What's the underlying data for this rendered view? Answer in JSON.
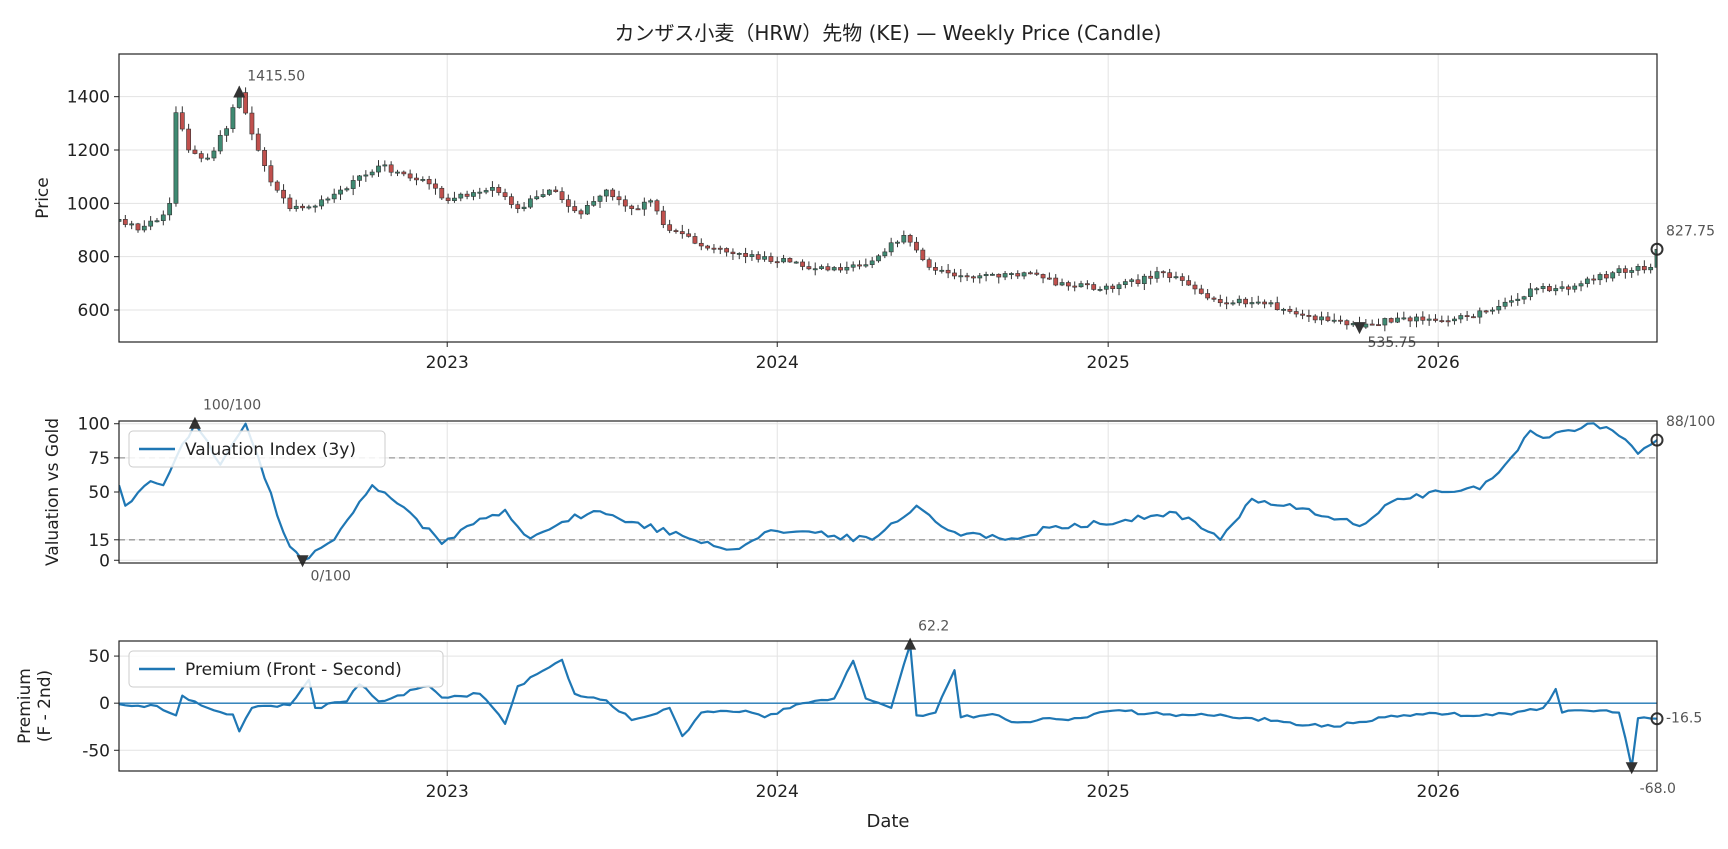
{
  "chart_data": [
    {
      "type": "candlestick",
      "title": "カンザス小麦（HRW）先物 (KE) — Weekly Price (Candle)",
      "ylabel": "Price",
      "xlabel": "",
      "xlim": [
        "2022-01-03",
        "2026-08-31"
      ],
      "ylim": [
        480,
        1560
      ],
      "yticks": [
        600,
        800,
        1000,
        1200,
        1400
      ],
      "xticks": [
        "2023-01-01",
        "2024-01-01",
        "2025-01-01",
        "2026-01-01"
      ],
      "xticklabels": [
        "2023",
        "2024",
        "2025",
        "2026"
      ],
      "grid": true,
      "up_color": "#3f8a72",
      "down_color": "#c0504d",
      "anchors": [
        [
          "2022-01-03",
          940
        ],
        [
          "2022-01-24",
          900
        ],
        [
          "2022-02-14",
          935
        ],
        [
          "2022-02-28",
          1000
        ],
        [
          "2022-03-07",
          1340
        ],
        [
          "2022-03-21",
          1200
        ],
        [
          "2022-04-11",
          1170
        ],
        [
          "2022-05-02",
          1280
        ],
        [
          "2022-05-16",
          1415.5
        ],
        [
          "2022-05-30",
          1260
        ],
        [
          "2022-06-20",
          1080
        ],
        [
          "2022-07-11",
          980
        ],
        [
          "2022-08-08",
          990
        ],
        [
          "2022-09-05",
          1050
        ],
        [
          "2022-10-17",
          1140
        ],
        [
          "2022-12-05",
          1090
        ],
        [
          "2023-01-02",
          1010
        ],
        [
          "2023-02-20",
          1060
        ],
        [
          "2023-03-20",
          980
        ],
        [
          "2023-04-24",
          1050
        ],
        [
          "2023-05-29",
          960
        ],
        [
          "2023-06-26",
          1050
        ],
        [
          "2023-07-24",
          980
        ],
        [
          "2023-08-14",
          1010
        ],
        [
          "2023-08-28",
          920
        ],
        [
          "2023-10-09",
          840
        ],
        [
          "2023-11-27",
          800
        ],
        [
          "2024-01-15",
          780
        ],
        [
          "2024-02-26",
          750
        ],
        [
          "2024-04-08",
          770
        ],
        [
          "2024-05-20",
          880
        ],
        [
          "2024-06-17",
          760
        ],
        [
          "2024-08-05",
          720
        ],
        [
          "2024-09-30",
          740
        ],
        [
          "2024-11-18",
          690
        ],
        [
          "2025-01-06",
          680
        ],
        [
          "2025-03-03",
          740
        ],
        [
          "2025-04-28",
          640
        ],
        [
          "2025-06-16",
          630
        ],
        [
          "2025-08-04",
          580
        ],
        [
          "2025-09-15",
          560
        ],
        [
          "2025-10-06",
          535.75
        ],
        [
          "2025-11-17",
          570
        ],
        [
          "2026-01-05",
          560
        ],
        [
          "2026-03-02",
          600
        ],
        [
          "2026-04-20",
          680
        ],
        [
          "2026-06-01",
          690
        ],
        [
          "2026-07-13",
          740
        ],
        [
          "2026-08-24",
          760
        ],
        [
          "2026-08-31",
          827.75
        ]
      ],
      "annotations": [
        {
          "date": "2022-05-16",
          "value": 1415.5,
          "label": "1415.50",
          "marker": "up"
        },
        {
          "date": "2025-10-06",
          "value": 535.75,
          "label": "535.75",
          "marker": "down"
        },
        {
          "date": "2026-08-31",
          "value": 827.75,
          "label": "827.75",
          "marker": "circle"
        }
      ]
    },
    {
      "type": "line",
      "ylabel": "Valuation vs Gold",
      "xlim": [
        "2022-01-03",
        "2026-08-31"
      ],
      "ylim": [
        -2,
        102
      ],
      "yticks": [
        0,
        15,
        50,
        75,
        100
      ],
      "hlines": [
        15,
        75
      ],
      "grid": true,
      "series": [
        {
          "name": "Valuation Index (3y)",
          "color": "#1f77b4",
          "anchors": [
            [
              "2022-01-03",
              55
            ],
            [
              "2022-01-10",
              40
            ],
            [
              "2022-02-07",
              58
            ],
            [
              "2022-02-21",
              55
            ],
            [
              "2022-03-14",
              85
            ],
            [
              "2022-03-28",
              100
            ],
            [
              "2022-04-25",
              70
            ],
            [
              "2022-05-23",
              100
            ],
            [
              "2022-06-13",
              60
            ],
            [
              "2022-07-11",
              10
            ],
            [
              "2022-07-25",
              0
            ],
            [
              "2022-08-29",
              15
            ],
            [
              "2022-10-10",
              55
            ],
            [
              "2022-11-21",
              35
            ],
            [
              "2022-12-26",
              12
            ],
            [
              "2023-01-23",
              25
            ],
            [
              "2023-03-06",
              37
            ],
            [
              "2023-04-03",
              16
            ],
            [
              "2023-05-08",
              28
            ],
            [
              "2023-06-12",
              36
            ],
            [
              "2023-07-24",
              28
            ],
            [
              "2023-09-18",
              18
            ],
            [
              "2023-11-13",
              8
            ],
            [
              "2023-12-25",
              22
            ],
            [
              "2024-03-04",
              18
            ],
            [
              "2024-04-15",
              15
            ],
            [
              "2024-06-03",
              40
            ],
            [
              "2024-07-08",
              22
            ],
            [
              "2024-09-09",
              15
            ],
            [
              "2024-11-04",
              25
            ],
            [
              "2025-01-13",
              28
            ],
            [
              "2025-03-17",
              35
            ],
            [
              "2025-05-05",
              15
            ],
            [
              "2025-06-09",
              45
            ],
            [
              "2025-08-04",
              38
            ],
            [
              "2025-10-06",
              25
            ],
            [
              "2025-11-17",
              45
            ],
            [
              "2026-01-05",
              50
            ],
            [
              "2026-02-16",
              52
            ],
            [
              "2026-03-16",
              70
            ],
            [
              "2026-04-13",
              95
            ],
            [
              "2026-05-04",
              90
            ],
            [
              "2026-06-15",
              100
            ],
            [
              "2026-07-13",
              95
            ],
            [
              "2026-08-10",
              78
            ],
            [
              "2026-08-31",
              88
            ]
          ]
        }
      ],
      "annotations": [
        {
          "date": "2022-03-28",
          "value": 100,
          "label": "100/100",
          "marker": "up"
        },
        {
          "date": "2022-07-25",
          "value": 0,
          "label": "0/100",
          "marker": "down"
        },
        {
          "date": "2026-08-31",
          "value": 88,
          "label": "88/100",
          "marker": "circle"
        }
      ]
    },
    {
      "type": "line",
      "ylabel": "Premium\n(F - 2nd)",
      "xlabel": "Date",
      "xlim": [
        "2022-01-03",
        "2026-08-31"
      ],
      "ylim": [
        -72,
        66
      ],
      "yticks": [
        -50,
        0,
        50
      ],
      "xticks": [
        "2023-01-01",
        "2024-01-01",
        "2025-01-01",
        "2026-01-01"
      ],
      "xticklabels": [
        "2023",
        "2024",
        "2025",
        "2026"
      ],
      "hlines": [
        0
      ],
      "grid": true,
      "series": [
        {
          "name": "Premium (Front - Second)",
          "color": "#1f77b4",
          "anchors": [
            [
              "2022-01-03",
              -1
            ],
            [
              "2022-02-14",
              -3
            ],
            [
              "2022-03-07",
              -13
            ],
            [
              "2022-03-14",
              8
            ],
            [
              "2022-04-11",
              -5
            ],
            [
              "2022-05-09",
              -12
            ],
            [
              "2022-05-16",
              -30
            ],
            [
              "2022-05-30",
              -5
            ],
            [
              "2022-07-11",
              -2
            ],
            [
              "2022-08-01",
              25
            ],
            [
              "2022-08-08",
              -5
            ],
            [
              "2022-09-12",
              2
            ],
            [
              "2022-09-26",
              20
            ],
            [
              "2022-10-17",
              2
            ],
            [
              "2022-12-12",
              18
            ],
            [
              "2022-12-26",
              6
            ],
            [
              "2023-02-06",
              10
            ],
            [
              "2023-03-06",
              -22
            ],
            [
              "2023-03-20",
              18
            ],
            [
              "2023-05-08",
              46
            ],
            [
              "2023-05-22",
              10
            ],
            [
              "2023-06-26",
              3
            ],
            [
              "2023-07-24",
              -18
            ],
            [
              "2023-09-04",
              -5
            ],
            [
              "2023-09-18",
              -35
            ],
            [
              "2023-10-09",
              -10
            ],
            [
              "2023-11-27",
              -8
            ],
            [
              "2023-12-18",
              -15
            ],
            [
              "2024-01-29",
              0
            ],
            [
              "2024-03-04",
              5
            ],
            [
              "2024-03-25",
              45
            ],
            [
              "2024-04-08",
              5
            ],
            [
              "2024-05-06",
              -5
            ],
            [
              "2024-05-27",
              62.2
            ],
            [
              "2024-06-03",
              -13
            ],
            [
              "2024-06-24",
              -10
            ],
            [
              "2024-07-15",
              35
            ],
            [
              "2024-07-22",
              -15
            ],
            [
              "2024-09-02",
              -13
            ],
            [
              "2024-09-16",
              -20
            ],
            [
              "2024-12-09",
              -15
            ],
            [
              "2025-01-06",
              -8
            ],
            [
              "2025-03-03",
              -12
            ],
            [
              "2025-05-05",
              -12
            ],
            [
              "2025-07-14",
              -20
            ],
            [
              "2025-09-08",
              -25
            ],
            [
              "2025-11-03",
              -15
            ],
            [
              "2025-12-15",
              -12
            ],
            [
              "2026-03-23",
              -12
            ],
            [
              "2026-04-27",
              -5
            ],
            [
              "2026-05-11",
              15
            ],
            [
              "2026-05-18",
              -10
            ],
            [
              "2026-06-15",
              -8
            ],
            [
              "2026-07-20",
              -10
            ],
            [
              "2026-08-03",
              -68
            ],
            [
              "2026-08-10",
              -16
            ],
            [
              "2026-08-31",
              -16.5
            ]
          ]
        }
      ],
      "annotations": [
        {
          "date": "2024-05-27",
          "value": 62.2,
          "label": "62.2",
          "marker": "up"
        },
        {
          "date": "2026-08-03",
          "value": -68.0,
          "label": "-68.0",
          "marker": "down"
        },
        {
          "date": "2026-08-31",
          "value": -16.5,
          "label": "-16.5",
          "marker": "circle"
        }
      ]
    }
  ]
}
